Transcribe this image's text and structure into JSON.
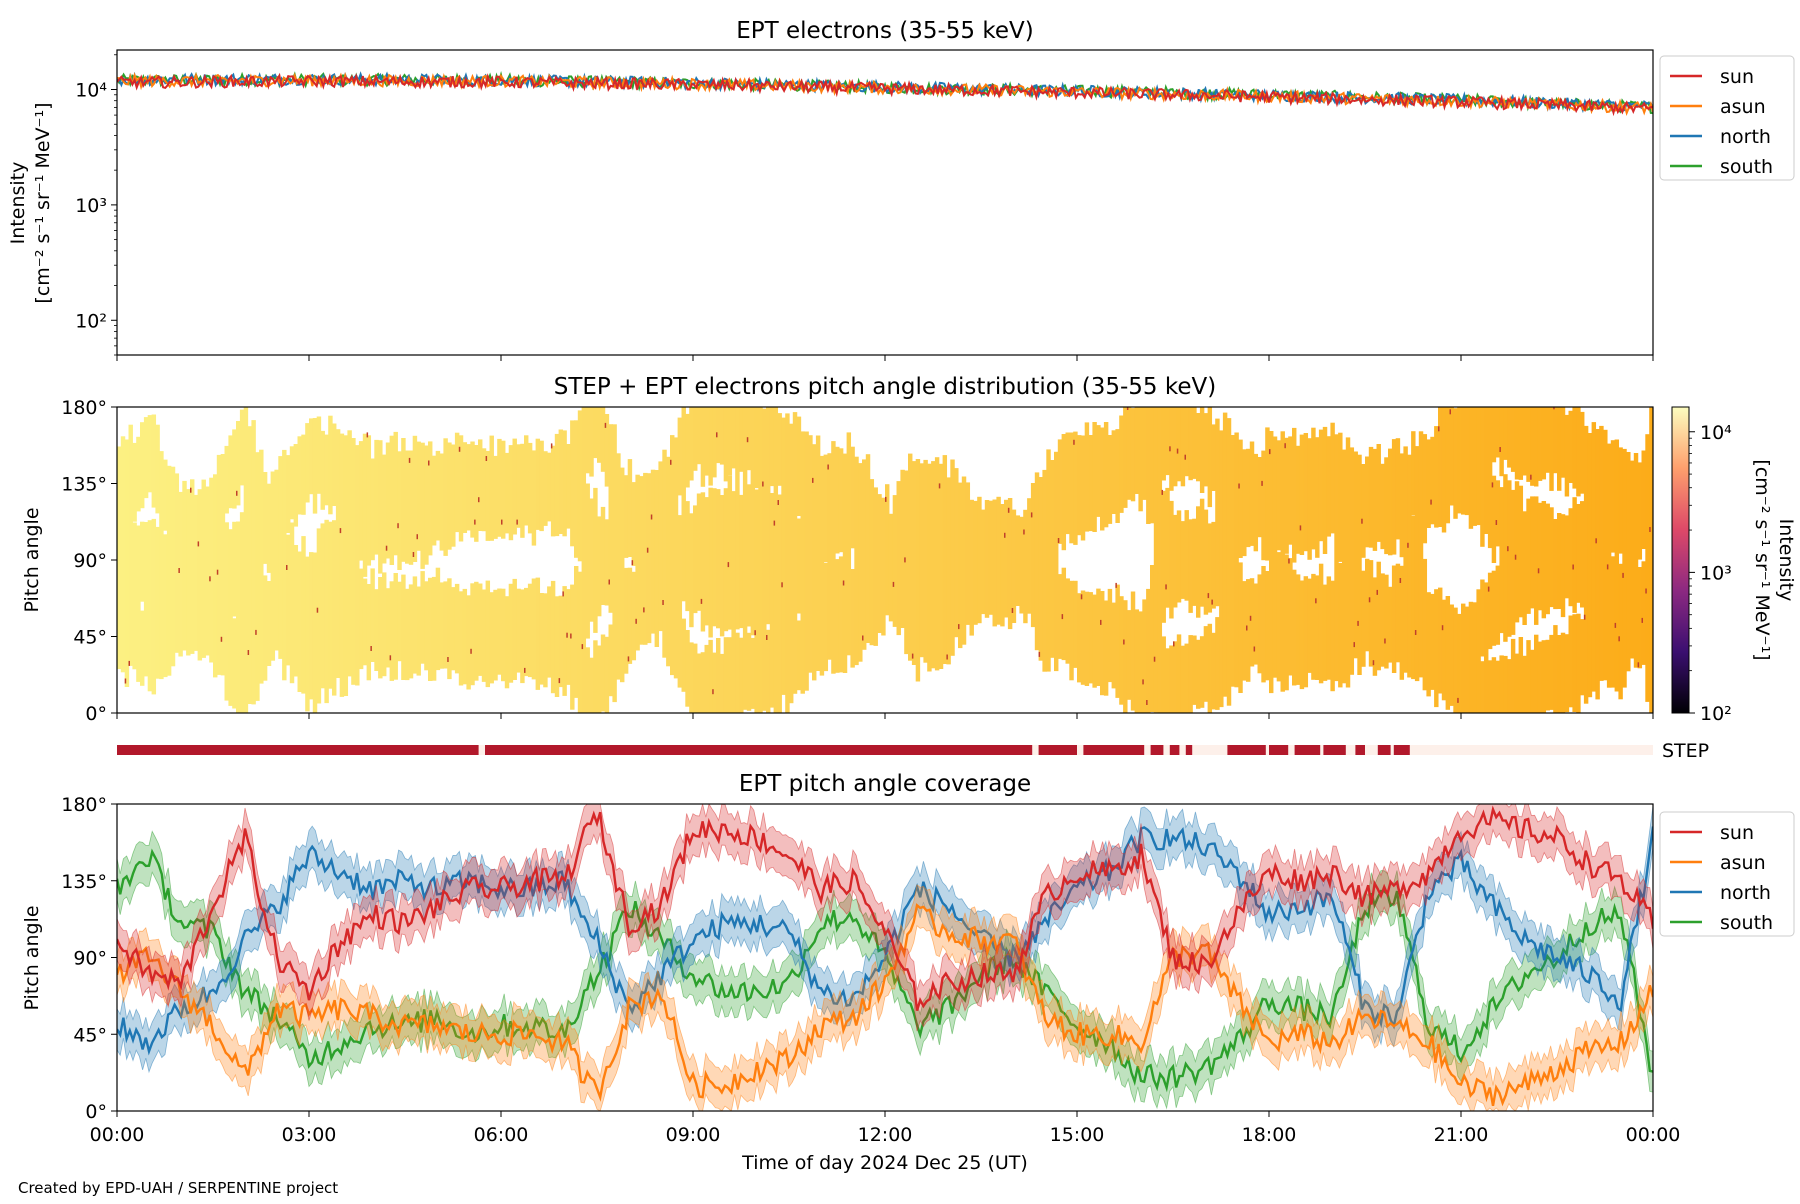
{
  "footer": "Created by EPD-UAH / SERPENTINE project",
  "chart_data": [
    {
      "type": "line",
      "title": "EPT electrons (35-55 keV)",
      "ylabel": [
        "Intensity",
        "[cm⁻² s⁻¹ sr⁻¹ MeV⁻¹]"
      ],
      "yscale": "log",
      "ylim": [
        50,
        22000
      ],
      "ytick_labels": [
        "10²",
        "10³",
        "10⁴"
      ],
      "ytick_values": [
        100,
        1000,
        10000
      ],
      "x_range_hours": [
        0,
        24
      ],
      "legend_position": "right-top",
      "series": [
        {
          "name": "sun",
          "color": "#d62728",
          "x_hours": [
            0,
            3,
            6,
            9,
            12,
            15,
            18,
            21,
            24
          ],
          "values": [
            11500,
            11800,
            11600,
            11000,
            10200,
            9400,
            8600,
            7800,
            6800
          ]
        },
        {
          "name": "asun",
          "color": "#ff7f0e",
          "x_hours": [
            0,
            3,
            6,
            9,
            12,
            15,
            18,
            21,
            24
          ],
          "values": [
            11800,
            12000,
            11800,
            11200,
            10300,
            9500,
            8700,
            7900,
            6900
          ]
        },
        {
          "name": "north",
          "color": "#1f77b4",
          "x_hours": [
            0,
            3,
            6,
            9,
            12,
            15,
            18,
            21,
            24
          ],
          "values": [
            12200,
            12300,
            12000,
            11400,
            10500,
            9700,
            8900,
            8100,
            7100
          ]
        },
        {
          "name": "south",
          "color": "#2ca02c",
          "x_hours": [
            0,
            3,
            6,
            9,
            12,
            15,
            18,
            21,
            24
          ],
          "values": [
            12000,
            12200,
            12000,
            11300,
            10400,
            9700,
            9000,
            8100,
            7000
          ]
        }
      ]
    },
    {
      "type": "heatmap",
      "title": "STEP + EPT electrons pitch angle distribution (35-55 keV)",
      "ylabel": "Pitch angle",
      "ytick_labels": [
        "0°",
        "45°",
        "90°",
        "135°",
        "180°"
      ],
      "ytick_values": [
        0,
        45,
        90,
        135,
        180
      ],
      "ylim": [
        0,
        180
      ],
      "colorbar": {
        "label": [
          "Intensity",
          "[cm⁻² s⁻¹ sr⁻¹ MeV⁻¹]"
        ],
        "scale": "log",
        "range": [
          100,
          15000
        ],
        "tick_labels": [
          "10²",
          "10³",
          "10⁴"
        ],
        "colormap": [
          "#000004",
          "#3b0f70",
          "#8c2981",
          "#de4968",
          "#fe9f6d",
          "#fcfdbf"
        ]
      }
    },
    {
      "type": "bar",
      "label": "STEP",
      "on_color": "#b2182b",
      "off_color": "#fdf0ea",
      "on_intervals_hours": [
        [
          0,
          5.65
        ],
        [
          5.75,
          14.3
        ],
        [
          14.4,
          15.0
        ],
        [
          15.1,
          16.05
        ],
        [
          16.15,
          16.35
        ],
        [
          16.45,
          16.6
        ],
        [
          16.7,
          16.8
        ],
        [
          17.35,
          17.95
        ],
        [
          18.0,
          18.3
        ],
        [
          18.4,
          18.8
        ],
        [
          18.85,
          19.2
        ],
        [
          19.35,
          19.5
        ],
        [
          19.7,
          19.9
        ],
        [
          19.95,
          20.2
        ]
      ]
    },
    {
      "type": "line",
      "title": "EPT pitch angle coverage",
      "ylabel": "Pitch angle",
      "ytick_labels": [
        "0°",
        "45°",
        "90°",
        "135°",
        "180°"
      ],
      "ytick_values": [
        0,
        45,
        90,
        135,
        180
      ],
      "ylim": [
        0,
        180
      ],
      "xlabel": "Time of day 2024 Dec 25 (UT)",
      "xtick_labels": [
        "00:00",
        "03:00",
        "06:00",
        "09:00",
        "12:00",
        "15:00",
        "18:00",
        "21:00",
        "00:00"
      ],
      "xtick_hours": [
        0,
        3,
        6,
        9,
        12,
        15,
        18,
        21,
        24
      ],
      "legend_position": "right-top",
      "series": [
        {
          "name": "sun",
          "color": "#d62728",
          "x_hours": [
            0,
            0.5,
            1,
            1.5,
            2,
            2.5,
            3,
            3.5,
            4,
            4.5,
            5,
            5.5,
            6,
            6.5,
            7,
            7.3,
            7.5,
            8,
            8.5,
            9,
            9.5,
            10,
            10.5,
            11,
            11.5,
            12,
            12.5,
            13,
            13.5,
            14,
            14.5,
            15,
            15.5,
            16,
            16.5,
            17,
            17.5,
            18,
            18.5,
            19,
            19.5,
            20,
            20.5,
            21,
            21.5,
            22,
            22.5,
            23,
            23.5,
            24
          ],
          "values": [
            100,
            80,
            75,
            120,
            160,
            90,
            70,
            100,
            115,
            110,
            120,
            130,
            130,
            135,
            135,
            160,
            175,
            110,
            120,
            165,
            165,
            160,
            150,
            130,
            135,
            105,
            65,
            75,
            80,
            80,
            125,
            140,
            140,
            150,
            90,
            85,
            115,
            140,
            135,
            140,
            125,
            130,
            140,
            165,
            170,
            165,
            160,
            145,
            135,
            110
          ]
        },
        {
          "name": "asun",
          "color": "#ff7f0e",
          "x_hours": [
            0,
            0.5,
            1,
            1.5,
            2,
            2.5,
            3,
            3.5,
            4,
            4.5,
            5,
            5.5,
            6,
            6.5,
            7,
            7.3,
            7.5,
            8,
            8.5,
            9,
            9.5,
            10,
            10.5,
            11,
            11.5,
            12,
            12.5,
            13,
            13.5,
            14,
            14.5,
            15,
            15.5,
            16,
            16.5,
            17,
            17.5,
            18,
            18.5,
            19,
            19.5,
            20,
            20.5,
            21,
            21.5,
            22,
            22.5,
            23,
            23.5,
            24
          ],
          "values": [
            80,
            90,
            70,
            50,
            20,
            60,
            55,
            60,
            55,
            50,
            50,
            45,
            45,
            45,
            40,
            20,
            10,
            60,
            70,
            15,
            15,
            25,
            30,
            50,
            55,
            75,
            115,
            105,
            100,
            100,
            55,
            45,
            45,
            40,
            90,
            95,
            65,
            40,
            45,
            40,
            55,
            50,
            40,
            15,
            10,
            15,
            25,
            35,
            40,
            70
          ]
        },
        {
          "name": "north",
          "color": "#1f77b4",
          "x_hours": [
            0,
            0.5,
            1,
            1.5,
            2,
            2.5,
            3,
            3.5,
            4,
            4.5,
            5,
            5.5,
            6,
            6.5,
            7,
            7.3,
            7.5,
            8,
            8.5,
            9,
            9.5,
            10,
            10.5,
            11,
            11.5,
            12,
            12.5,
            13,
            13.5,
            14,
            14.5,
            15,
            15.5,
            16,
            16.5,
            17,
            17.5,
            18,
            18.5,
            19,
            19.5,
            20,
            20.5,
            21,
            21.5,
            22,
            22.5,
            23,
            23.5,
            24
          ],
          "values": [
            50,
            40,
            60,
            70,
            100,
            120,
            150,
            140,
            130,
            135,
            130,
            135,
            130,
            130,
            135,
            110,
            100,
            60,
            80,
            100,
            110,
            110,
            105,
            70,
            65,
            90,
            130,
            120,
            100,
            90,
            110,
            130,
            140,
            160,
            160,
            155,
            140,
            115,
            120,
            125,
            60,
            55,
            130,
            145,
            120,
            100,
            90,
            80,
            65,
            160
          ]
        },
        {
          "name": "south",
          "color": "#2ca02c",
          "x_hours": [
            0,
            0.5,
            1,
            1.5,
            2,
            2.5,
            3,
            3.5,
            4,
            4.5,
            5,
            5.5,
            6,
            6.5,
            7,
            7.3,
            7.5,
            8,
            8.5,
            9,
            9.5,
            10,
            10.5,
            11,
            11.5,
            12,
            12.5,
            13,
            13.5,
            14,
            14.5,
            15,
            15.5,
            16,
            16.5,
            17,
            17.5,
            18,
            18.5,
            19,
            19.5,
            20,
            20.5,
            21,
            21.5,
            22,
            22.5,
            23,
            23.5,
            24
          ],
          "values": [
            130,
            150,
            110,
            105,
            70,
            55,
            30,
            40,
            50,
            50,
            55,
            45,
            50,
            50,
            45,
            70,
            80,
            120,
            100,
            80,
            70,
            70,
            75,
            110,
            115,
            90,
            50,
            60,
            80,
            90,
            70,
            50,
            40,
            20,
            20,
            25,
            40,
            65,
            60,
            55,
            120,
            125,
            50,
            35,
            60,
            80,
            90,
            110,
            115,
            20
          ]
        }
      ]
    }
  ]
}
